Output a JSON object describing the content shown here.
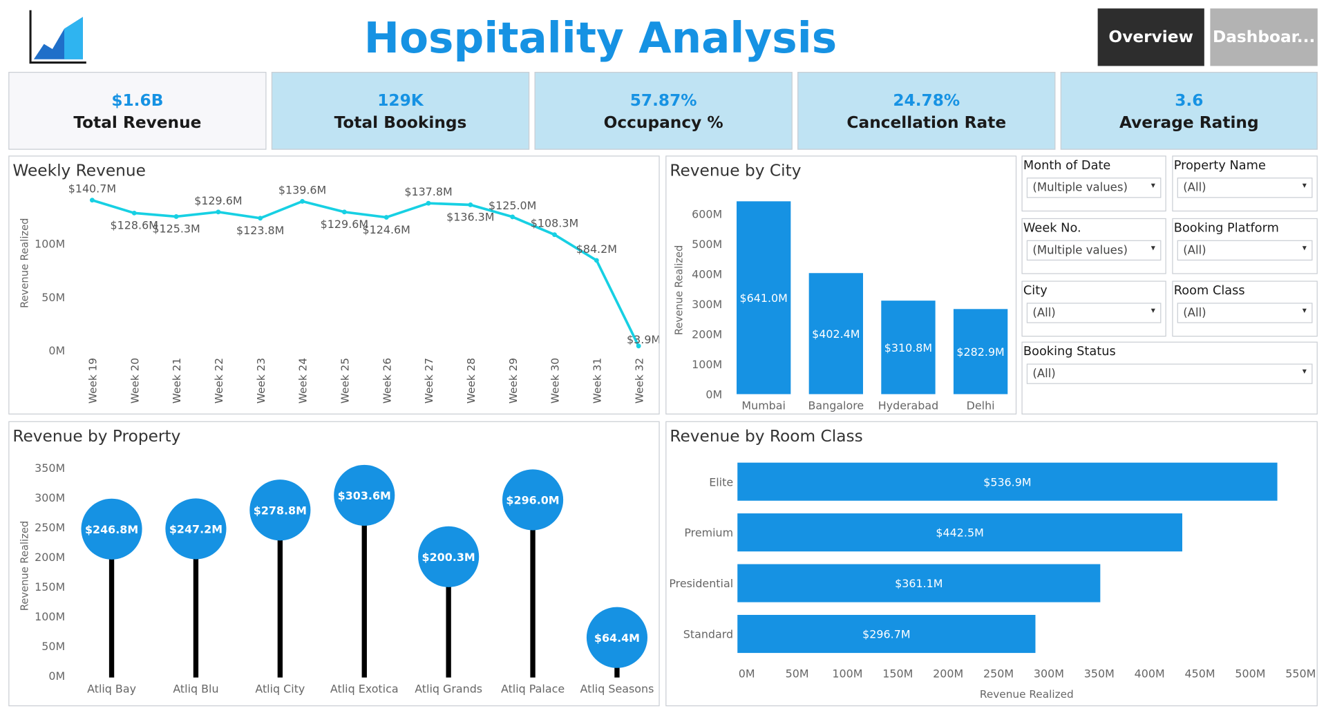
{
  "header": {
    "title": "Hospitality Analysis",
    "nav_overview": "Overview",
    "nav_dashboard": "Dashboar...",
    "logo_icon": "bar-chart-logo-icon",
    "accent": "#1692e3"
  },
  "kpis": [
    {
      "value": "$1.6B",
      "label": "Total Revenue"
    },
    {
      "value": "129K",
      "label": "Total Bookings"
    },
    {
      "value": "57.87%",
      "label": "Occupancy %"
    },
    {
      "value": "24.78%",
      "label": "Cancellation Rate"
    },
    {
      "value": "3.6",
      "label": "Average Rating"
    }
  ],
  "filters": [
    {
      "label": "Month of Date",
      "value": "(Multiple values)"
    },
    {
      "label": "Property Name",
      "value": "(All)"
    },
    {
      "label": "Week No.",
      "value": "(Multiple values)"
    },
    {
      "label": "Booking Platform",
      "value": "(All)"
    },
    {
      "label": "City",
      "value": "(All)"
    },
    {
      "label": "Room Class",
      "value": "(All)"
    },
    {
      "label": "Booking Status",
      "value": "(All)"
    }
  ],
  "chart_data": [
    {
      "type": "line",
      "title": "Weekly Revenue",
      "ylabel": "Revenue Realized",
      "xlabel": "",
      "ylim": [
        0,
        150
      ],
      "yticks": [
        "0M",
        "50M",
        "100M"
      ],
      "x": [
        "Week 19",
        "Week 20",
        "Week 21",
        "Week 22",
        "Week 23",
        "Week 24",
        "Week 25",
        "Week 26",
        "Week 27",
        "Week 28",
        "Week 29",
        "Week 30",
        "Week 31",
        "Week 32"
      ],
      "values": [
        140.7,
        128.6,
        125.3,
        129.6,
        123.8,
        139.6,
        129.6,
        124.6,
        137.8,
        136.3,
        125.0,
        108.3,
        84.2,
        3.9
      ],
      "labels": [
        "$140.7M",
        "$128.6M",
        "$125.3M",
        "$129.6M",
        "$123.8M",
        "$139.6M",
        "$129.6M",
        "$124.6M",
        "$137.8M",
        "$136.3M",
        "$125.0M",
        "$108.3M",
        "$84.2M",
        "$3.9M"
      ],
      "color": "#17d0e3"
    },
    {
      "type": "bar",
      "title": "Revenue by City",
      "ylabel": "Revenue Realized",
      "ylim": [
        0,
        650
      ],
      "yticks": [
        "0M",
        "100M",
        "200M",
        "300M",
        "400M",
        "500M",
        "600M"
      ],
      "categories": [
        "Mumbai",
        "Bangalore",
        "Hyderabad",
        "Delhi"
      ],
      "values": [
        641.0,
        402.4,
        310.8,
        282.9
      ],
      "labels": [
        "$641.0M",
        "$402.4M",
        "$310.8M",
        "$282.9M"
      ],
      "color": "#1692e3"
    },
    {
      "type": "lollipop",
      "title": "Revenue by Property",
      "ylabel": "Revenue Realized",
      "ylim": [
        0,
        360
      ],
      "yticks": [
        "0M",
        "50M",
        "100M",
        "150M",
        "200M",
        "250M",
        "300M",
        "350M"
      ],
      "categories": [
        "Atliq Bay",
        "Atliq Blu",
        "Atliq City",
        "Atliq Exotica",
        "Atliq Grands",
        "Atliq Palace",
        "Atliq Seasons"
      ],
      "values": [
        246.8,
        247.2,
        278.8,
        303.6,
        200.3,
        296.0,
        64.4
      ],
      "labels": [
        "$246.8M",
        "$247.2M",
        "$278.8M",
        "$303.6M",
        "$200.3M",
        "$296.0M",
        "$64.4M"
      ],
      "color": "#1692e3"
    },
    {
      "type": "bar",
      "orientation": "horizontal",
      "title": "Revenue by Room Class",
      "xlabel": "Revenue Realized",
      "xlim": [
        0,
        555
      ],
      "xticks": [
        "0M",
        "50M",
        "100M",
        "150M",
        "200M",
        "250M",
        "300M",
        "350M",
        "400M",
        "450M",
        "500M",
        "550M"
      ],
      "categories": [
        "Elite",
        "Premium",
        "Presidential",
        "Standard"
      ],
      "values": [
        536.9,
        442.5,
        361.1,
        296.7
      ],
      "labels": [
        "$536.9M",
        "$442.5M",
        "$361.1M",
        "$296.7M"
      ],
      "color": "#1692e3"
    }
  ]
}
